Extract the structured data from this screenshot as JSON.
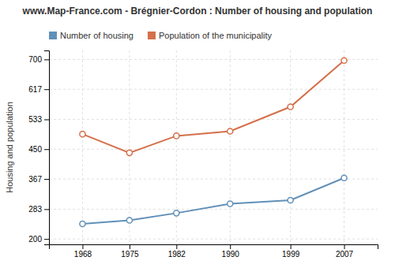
{
  "chart_data": {
    "type": "line",
    "title": "www.Map-France.com - Brégnier-Cordon : Number of housing and population",
    "ylabel": "Housing and population",
    "x": [
      1968,
      1975,
      1982,
      1990,
      1999,
      2007
    ],
    "series": [
      {
        "name": "Number of housing",
        "color": "#6090b8",
        "marker": "circle",
        "line_style": "solid",
        "values": [
          242,
          252,
          272,
          298,
          308,
          370
        ]
      },
      {
        "name": "Population of the municipality",
        "color": "#d4704a",
        "marker": "circle",
        "line_style": "solid",
        "values": [
          492,
          440,
          487,
          500,
          568,
          697
        ]
      }
    ],
    "xlim": [
      1963,
      2012
    ],
    "xticks": [
      1968,
      1975,
      1982,
      1990,
      1999,
      2007
    ],
    "ylim": [
      185,
      725
    ],
    "yticks": [
      200,
      283,
      367,
      450,
      533,
      617,
      700
    ],
    "grid": true,
    "legend": "upper left"
  }
}
